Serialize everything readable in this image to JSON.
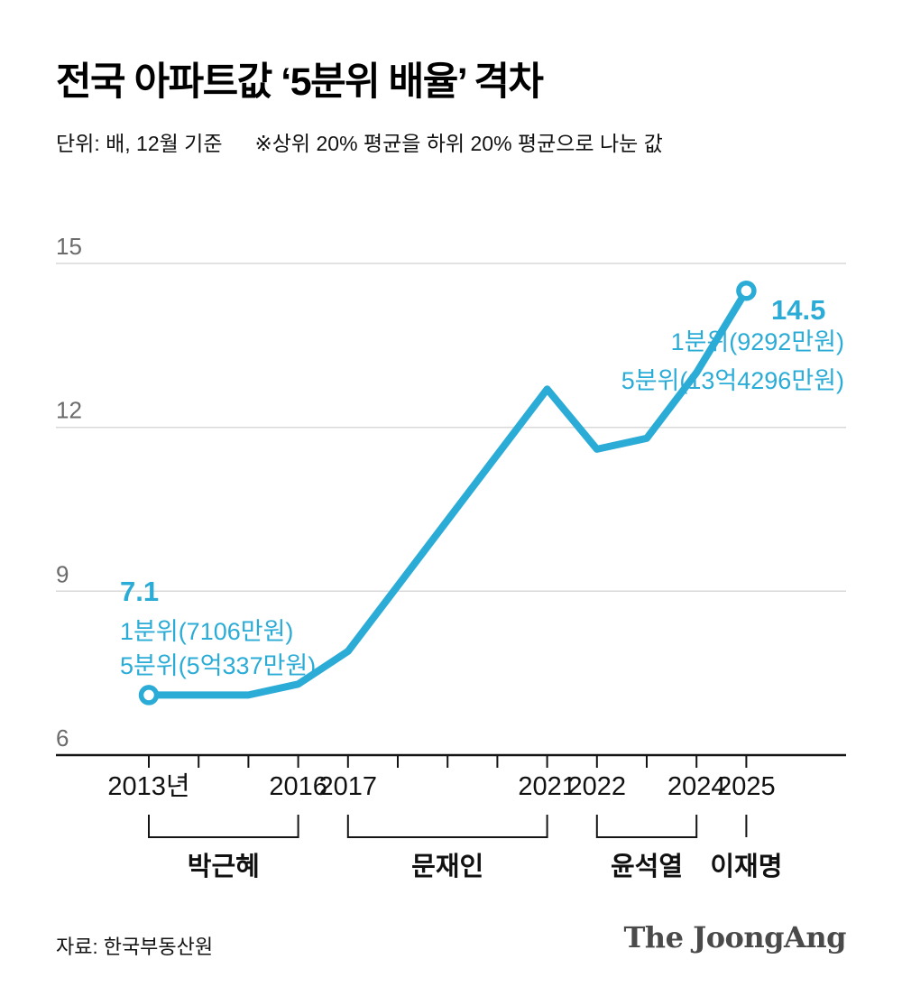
{
  "header": {
    "title": "전국 아파트값 ‘5분위 배율’ 격차",
    "subtitle_unit": "단위: 배, 12월 기준",
    "subtitle_note": "※상위 20% 평균을 하위 20% 평균으로 나눈 값"
  },
  "chart_data": {
    "type": "line",
    "title": "전국 아파트값 ‘5분위 배율’ 격차",
    "x": [
      2013,
      2014,
      2015,
      2016,
      2017,
      2018,
      2019,
      2020,
      2021,
      2022,
      2023,
      2024,
      2025
    ],
    "values": [
      7.1,
      7.1,
      7.1,
      7.3,
      7.9,
      9.1,
      10.3,
      11.5,
      12.7,
      11.6,
      11.8,
      13.0,
      14.5
    ],
    "ylim": [
      6,
      15
    ],
    "yticks": [
      6,
      9,
      12,
      15
    ],
    "xtick_labels": [
      {
        "year": 2013,
        "label": "2013년"
      },
      {
        "year": 2016,
        "label": "2016"
      },
      {
        "year": 2017,
        "label": "2017"
      },
      {
        "year": 2021,
        "label": "2021"
      },
      {
        "year": 2022,
        "label": "2022"
      },
      {
        "year": 2024,
        "label": "2024"
      },
      {
        "year": 2025,
        "label": "2025"
      }
    ],
    "line_color": "#2bacd6",
    "grid_color": "#d9d9d9",
    "axis_color": "#141414",
    "annotations": {
      "start": {
        "value_label": "7.1",
        "line1": "1분위(7106만원)",
        "line2": "5분위(5억337만원)"
      },
      "end": {
        "value_label": "14.5",
        "line1": "1분위(9292만원)",
        "line2": "5분위(13억4296만원)"
      }
    },
    "presidents": [
      {
        "name": "박근혜",
        "from": 2013,
        "to": 2016
      },
      {
        "name": "문재인",
        "from": 2017,
        "to": 2021
      },
      {
        "name": "윤석열",
        "from": 2022,
        "to": 2024
      },
      {
        "name": "이재명",
        "from": 2025,
        "to": 2025
      }
    ]
  },
  "footer": {
    "source": "자료: 한국부동산원",
    "logo": "The JoongAng"
  }
}
